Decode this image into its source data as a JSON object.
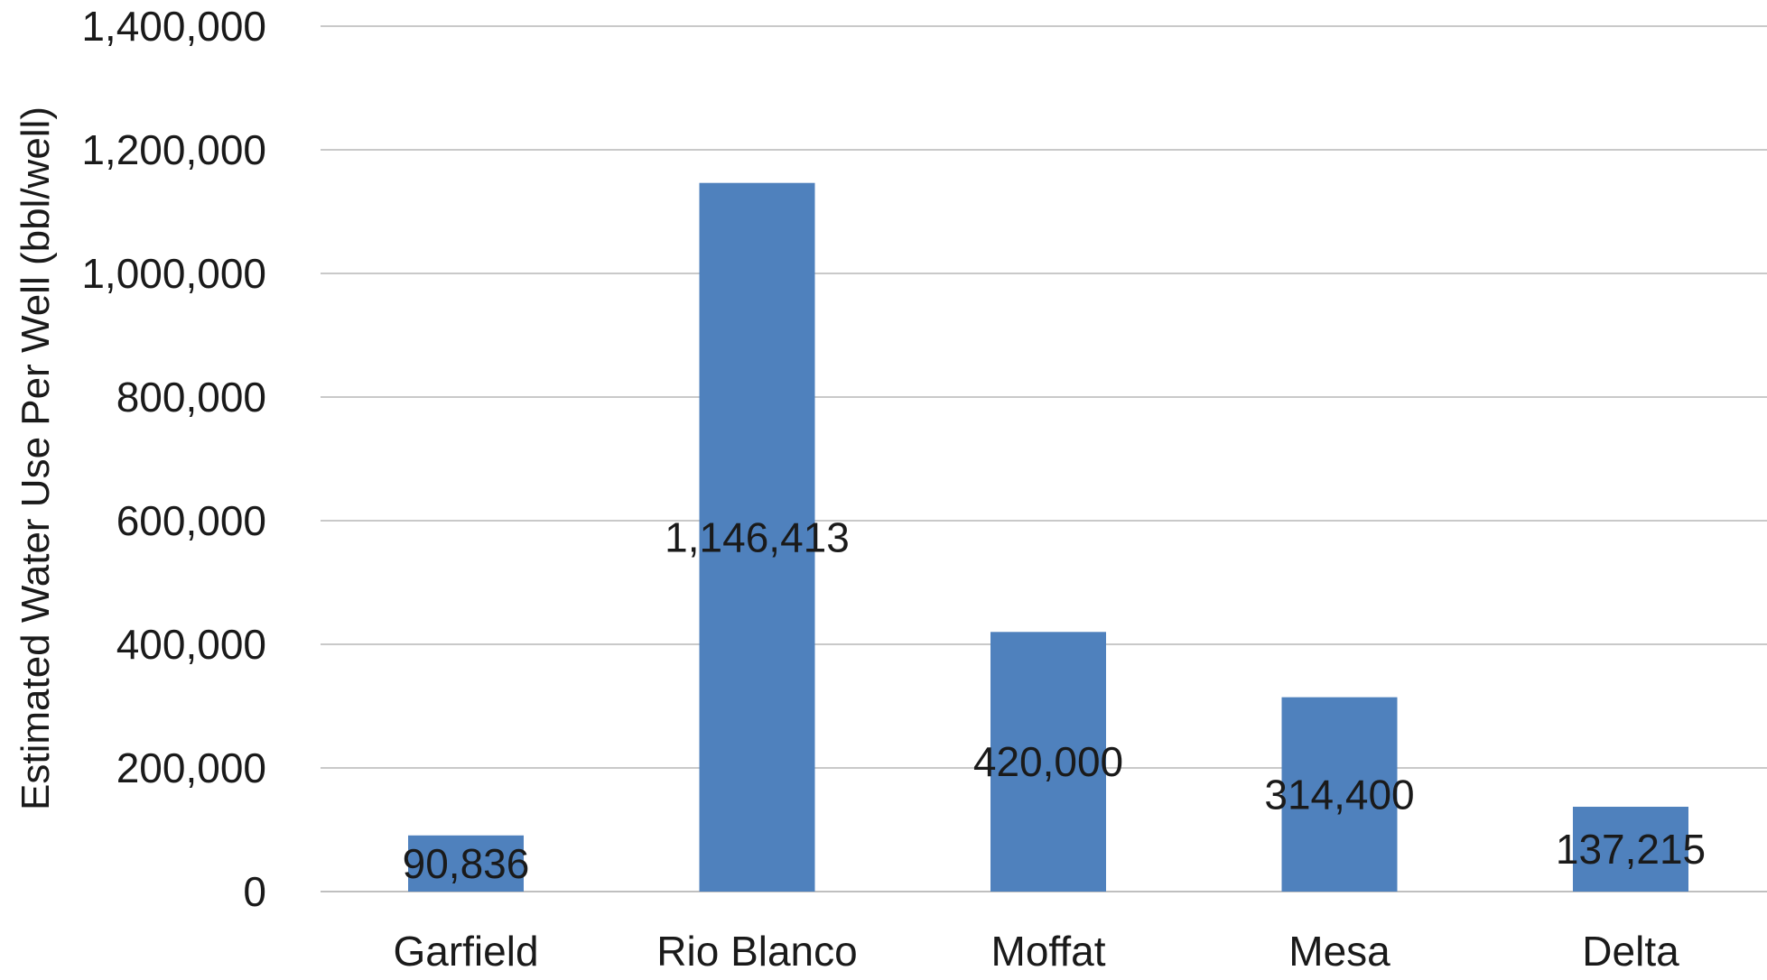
{
  "chart_data": {
    "type": "bar",
    "categories": [
      "Garfield",
      "Rio Blanco",
      "Moffat",
      "Mesa",
      "Delta"
    ],
    "series": [
      {
        "values": [
          90836,
          1146413,
          420000,
          314400,
          137215
        ],
        "data_labels": [
          "90,836",
          "1,146,413",
          "420,000",
          "314,400",
          "137,215"
        ]
      }
    ],
    "title": "",
    "xlabel": "",
    "ylabel": "Estimated Water Use Per Well (bbl/well)",
    "ylim": [
      0,
      1400000
    ],
    "yticks": [
      0,
      200000,
      400000,
      600000,
      800000,
      1000000,
      1200000,
      1400000
    ],
    "ytick_labels": [
      "0",
      "200,000",
      "400,000",
      "600,000",
      "800,000",
      "1,000,000",
      "1,200,000",
      "1,400,000"
    ],
    "grid": true,
    "legend": "none",
    "bar_color": "#4f81bd"
  }
}
